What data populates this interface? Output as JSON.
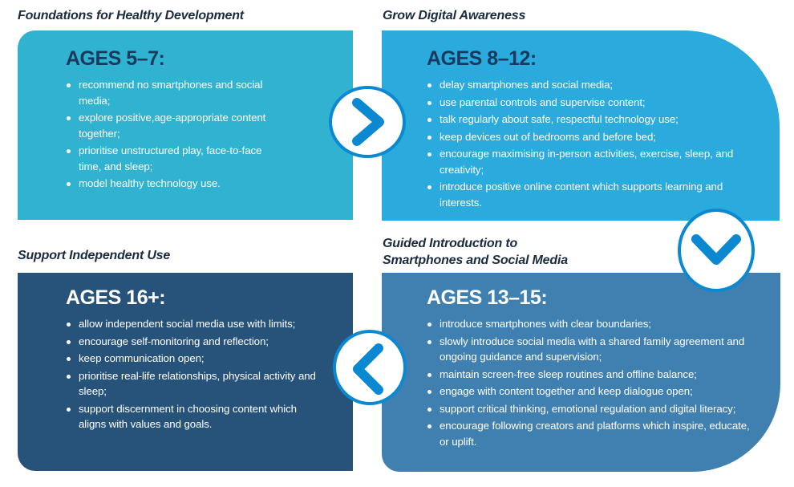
{
  "colors": {
    "box_5_7": "#30b3d0",
    "box_8_12": "#2aaadd",
    "box_16_plus": "#27537b",
    "box_13_15": "#3f80b1",
    "arrow": "#0a88d2",
    "heading_dark": "#173a5e"
  },
  "stages": {
    "s1": {
      "title": "Foundations for Healthy Development",
      "heading": "AGES 5–7:",
      "items": [
        "recommend no smartphones and social media;",
        "explore positive,age-appropriate content together;",
        "prioritise unstructured play, face-to-face time, and sleep;",
        "model healthy technology use."
      ]
    },
    "s2": {
      "title": "Grow Digital Awareness",
      "heading": "AGES 8–12:",
      "items": [
        "delay smartphones and social media;",
        "use parental controls and supervise content;",
        "talk regularly about safe, respectful technology use;",
        "keep devices out of bedrooms and before bed;",
        "encourage maximising in-person activities, exercise, sleep, and creativity;",
        "introduce positive online content which supports learning and interests."
      ]
    },
    "s3": {
      "title_line1": "Guided Introduction to",
      "title_line2": "Smartphones and Social Media",
      "heading": "AGES 13–15:",
      "items": [
        "introduce smartphones with clear boundaries;",
        "slowly introduce social media with a shared family agreement and ongoing guidance and supervision;",
        "maintain screen-free sleep routines and offline balance;",
        "engage with content together and keep dialogue open;",
        "support critical thinking, emotional regulation and digital literacy;",
        "encourage following creators and platforms which inspire, educate, or uplift."
      ]
    },
    "s4": {
      "title": "Support Independent Use",
      "heading": "AGES 16+:",
      "items": [
        "allow independent social media use with limits;",
        "encourage self-monitoring and reflection;",
        "keep communication open;",
        "prioritise real-life relationships, physical activity and sleep;",
        "support discernment in choosing content which aligns with values and goals."
      ]
    }
  },
  "arrows": [
    "chevron-right-icon",
    "chevron-down-icon",
    "chevron-left-icon"
  ]
}
